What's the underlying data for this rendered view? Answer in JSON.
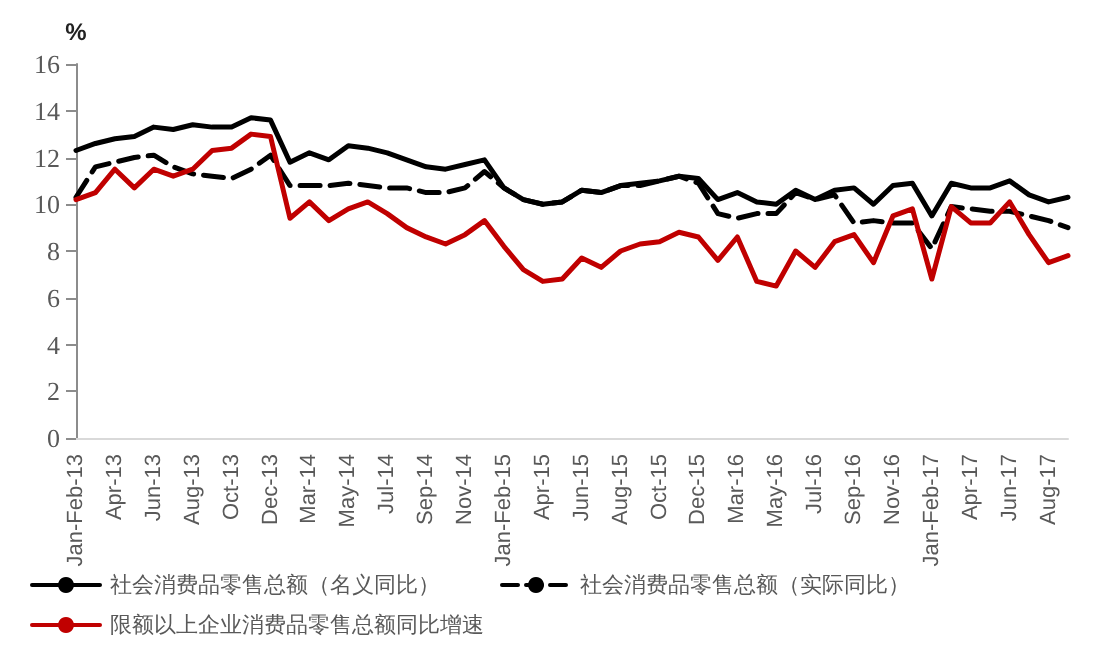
{
  "chart_data": {
    "type": "line",
    "ylabel": "%",
    "categories": [
      "Jan-Feb-13",
      null,
      "Apr-13",
      null,
      "Jun-13",
      null,
      "Aug-13",
      null,
      "Oct-13",
      null,
      "Dec-13",
      null,
      "Mar-14",
      null,
      "May-14",
      null,
      "Jul-14",
      null,
      "Sep-14",
      null,
      "Nov-14",
      null,
      "Jan-Feb-15",
      null,
      "Apr-15",
      null,
      "Jun-15",
      null,
      "Aug-15",
      null,
      "Oct-15",
      null,
      "Dec-15",
      null,
      "Mar-16",
      null,
      "May-16",
      null,
      "Jul-16",
      null,
      "Sep-16",
      null,
      "Nov-16",
      null,
      "Jan-Feb-17",
      null,
      "Apr-17",
      null,
      "Jun-17",
      null,
      "Aug-17",
      null
    ],
    "series": [
      {
        "name": "社会消费品零售总额（名义同比）",
        "color": "#000000",
        "line_style": "solid",
        "values": [
          12.3,
          12.6,
          12.8,
          12.9,
          13.3,
          13.2,
          13.4,
          13.3,
          13.3,
          13.7,
          13.6,
          11.8,
          12.2,
          11.9,
          12.5,
          12.4,
          12.2,
          11.9,
          11.6,
          11.5,
          11.7,
          11.9,
          10.7,
          10.2,
          10.0,
          10.1,
          10.6,
          10.5,
          10.8,
          10.9,
          11.0,
          11.2,
          11.1,
          10.2,
          10.5,
          10.1,
          10.0,
          10.6,
          10.2,
          10.6,
          10.7,
          10.0,
          10.8,
          10.9,
          9.5,
          10.9,
          10.7,
          10.7,
          11.0,
          10.4,
          10.1,
          10.3
        ]
      },
      {
        "name": "社会消费品零售总额（实际同比）",
        "color": "#000000",
        "line_style": "dashed",
        "values": [
          10.3,
          11.6,
          11.8,
          12.0,
          12.1,
          11.6,
          11.3,
          11.2,
          11.1,
          11.5,
          12.1,
          10.8,
          10.8,
          10.8,
          10.9,
          10.8,
          10.7,
          10.7,
          10.5,
          10.5,
          10.7,
          11.4,
          10.7,
          10.2,
          10.0,
          10.1,
          10.6,
          10.5,
          10.8,
          10.8,
          11.0,
          11.2,
          10.9,
          9.6,
          9.4,
          9.6,
          9.6,
          10.5,
          10.2,
          10.4,
          9.2,
          9.3,
          9.2,
          9.2,
          8.1,
          9.9,
          9.8,
          9.7,
          9.7,
          9.5,
          9.3,
          9.0
        ]
      },
      {
        "name": "限额以上企业消费品零售总额同比增速",
        "color": "#c00000",
        "line_style": "solid",
        "values": [
          10.2,
          10.5,
          11.5,
          10.7,
          11.5,
          11.2,
          11.5,
          12.3,
          12.4,
          13.0,
          12.9,
          9.4,
          10.1,
          9.3,
          9.8,
          10.1,
          9.6,
          9.0,
          8.6,
          8.3,
          8.7,
          9.3,
          8.2,
          7.2,
          6.7,
          6.8,
          7.7,
          7.3,
          8.0,
          8.3,
          8.4,
          8.8,
          8.6,
          7.6,
          8.6,
          6.7,
          6.5,
          8.0,
          7.3,
          8.4,
          8.7,
          7.5,
          9.5,
          9.8,
          6.8,
          9.9,
          9.2,
          9.2,
          10.1,
          8.7,
          7.5,
          7.8
        ]
      }
    ],
    "ylim": [
      0,
      16
    ],
    "yticks": [
      0,
      2,
      4,
      6,
      8,
      10,
      12,
      14,
      16
    ],
    "grid": false,
    "legend": "bottom",
    "marker": "none"
  }
}
